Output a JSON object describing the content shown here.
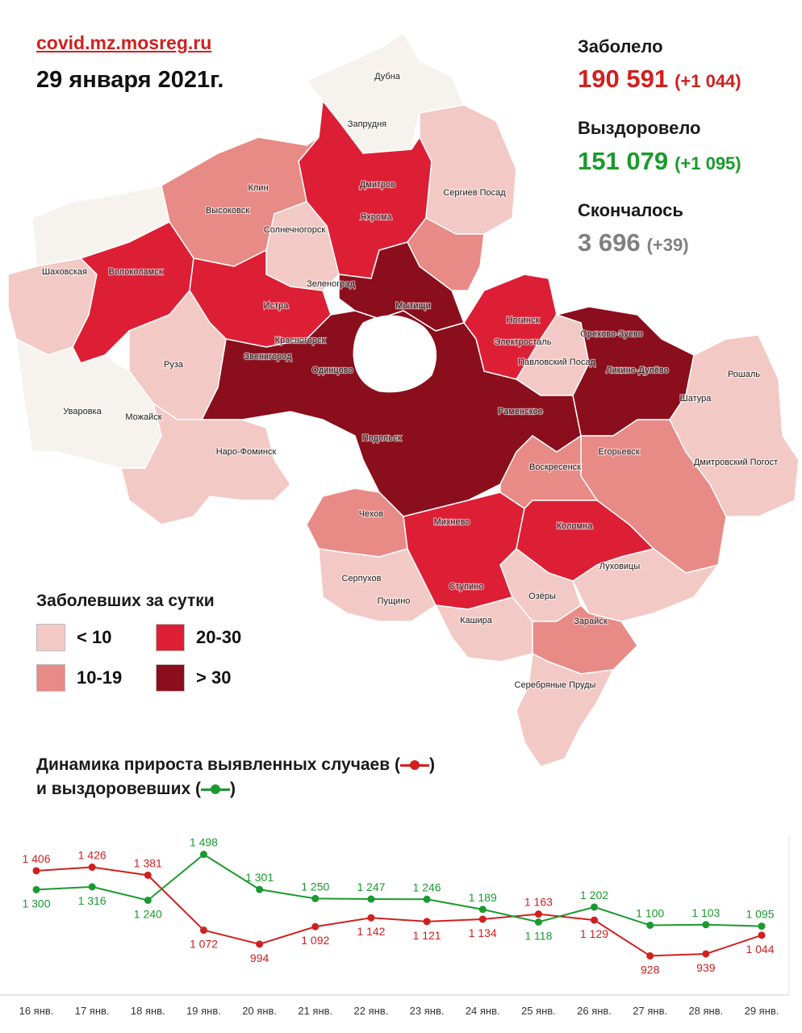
{
  "header": {
    "site": "covid.mz.mosreg.ru",
    "date": "29 января 2021г."
  },
  "stats": {
    "infected_label": "Заболело",
    "infected_value": "190 591",
    "infected_delta": "(+1 044)",
    "recovered_label": "Выздоровело",
    "recovered_value": "151 079",
    "recovered_delta": "(+1 095)",
    "deaths_label": "Скончалось",
    "deaths_value": "3 696",
    "deaths_delta": "(+39)"
  },
  "colors": {
    "red": "#d0201f",
    "green": "#1a9a2e",
    "gray": "#808080",
    "lt10": "#f3c9c5",
    "c10_19": "#e88a85",
    "c20_30": "#dd1f35",
    "gt30": "#8b0e1c",
    "neutral": "#f6f3ef"
  },
  "legend": {
    "title": "Заболевших за сутки",
    "items": [
      {
        "label": "< 10"
      },
      {
        "label": "20-30"
      },
      {
        "label": "10-19"
      },
      {
        "label": "> 30"
      }
    ]
  },
  "map_labels": [
    "Дмитров",
    "Яхрома",
    "Запрудня",
    "Сергиев Посад",
    "Клин",
    "Высоковск",
    "Солнечногорск",
    "Шаховская",
    "Волоколамск",
    "Зеленоград",
    "Мытищи",
    "Истра",
    "Красногорск",
    "Звенигород",
    "Одинцово",
    "Руза",
    "Уваровка",
    "Можайск",
    "Наро-Фоминск",
    "Ногинск",
    "Электросталь",
    "Павловский Посад",
    "Орехово-Зуево",
    "Ликино-Дулёво",
    "Рошаль",
    "Шатура",
    "Раменское",
    "Подольск",
    "Егорьевск",
    "Воскресенск",
    "Дмитровский Погост",
    "Чехов",
    "Михнево",
    "Коломна",
    "Серпухов",
    "Пущино",
    "Ступино",
    "Луховицы",
    "Озёры",
    "Кашира",
    "Зарайск",
    "Серебряные Пруды",
    "Дубна"
  ],
  "dynamics": {
    "title_line1": "Динамика прироста выявленных случаев (",
    "title_line1_end": ")",
    "title_line2": "и выздоровевших (",
    "title_line2_end": ")"
  },
  "chart_data": {
    "type": "line",
    "categories": [
      "16 янв.",
      "17 янв.",
      "18 янв.",
      "19 янв.",
      "20 янв.",
      "21 янв.",
      "22 янв.",
      "23 янв.",
      "24 янв.",
      "25 янв.",
      "26 янв.",
      "27 янв.",
      "28 янв.",
      "29 янв."
    ],
    "series": [
      {
        "values": [
          1406,
          1426,
          1381,
          1072,
          994,
          1092,
          1142,
          1121,
          1134,
          1163,
          1129,
          928,
          939,
          1044
        ],
        "labels": [
          "1 406",
          "1 426",
          "1 381",
          "1 072",
          "994",
          "1 092",
          "1 142",
          "1 121",
          "1 134",
          "1 163",
          "1 129",
          "928",
          "939",
          "1 044"
        ],
        "color": "#d0201f"
      },
      {
        "values": [
          1300,
          1316,
          1240,
          1498,
          1301,
          1250,
          1247,
          1246,
          1189,
          1118,
          1202,
          1100,
          1103,
          1095
        ],
        "labels": [
          "1 300",
          "1 316",
          "1 240",
          "1 498",
          "1 301",
          "1 250",
          "1 247",
          "1 246",
          "1 189",
          "1 118",
          "1 202",
          "1 100",
          "1 103",
          "1 095"
        ],
        "color": "#1a9a2e"
      }
    ],
    "ylim": [
      880,
      1560
    ],
    "grid": false
  }
}
